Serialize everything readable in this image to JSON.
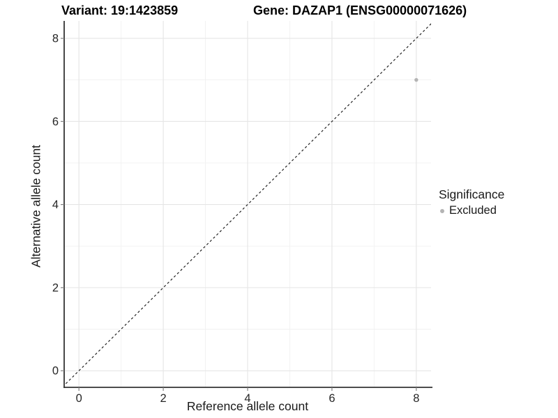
{
  "header": {
    "variant_title": "Variant: 19:1423859",
    "gene_title": "Gene: DAZAP1 (ENSG00000071626)"
  },
  "legend": {
    "title": "Significance",
    "items": [
      {
        "label": "Excluded",
        "color": "#b4b4b4",
        "marker": "circle"
      }
    ]
  },
  "chart_data": {
    "type": "scatter",
    "title": "Variant: 19:1423859   Gene: DAZAP1 (ENSG00000071626)",
    "xlabel": "Reference allele count",
    "ylabel": "Alternative allele count",
    "xlim": [
      -0.35,
      8.35
    ],
    "ylim": [
      -0.4,
      8.42
    ],
    "x_ticks": [
      0,
      2,
      4,
      6,
      8
    ],
    "y_ticks": [
      0,
      2,
      4,
      6,
      8
    ],
    "x_minor_gridlines": [
      1,
      3,
      5,
      7
    ],
    "y_minor_gridlines": [
      1,
      3,
      5,
      7
    ],
    "grid": "major+minor",
    "legend_position": "right",
    "series": [
      {
        "name": "Excluded",
        "color": "#b4b4b4",
        "marker": "circle",
        "points": [
          {
            "x": 8,
            "y": 7
          }
        ]
      }
    ],
    "reference_line": {
      "kind": "identity y=x",
      "style": "dashed",
      "color": "#1a1a1a"
    }
  },
  "colors": {
    "background": "#ffffff",
    "grid_major": "#e5e5e5",
    "grid_minor": "#f1f1f1",
    "axis_line": "#333333",
    "tick_mark": "#808080",
    "tick_label": "#262626",
    "title_text": "#000000",
    "axis_label": "#1a1a1a",
    "point": "#b4b4b4",
    "dashed_line": "#1a1a1a"
  }
}
